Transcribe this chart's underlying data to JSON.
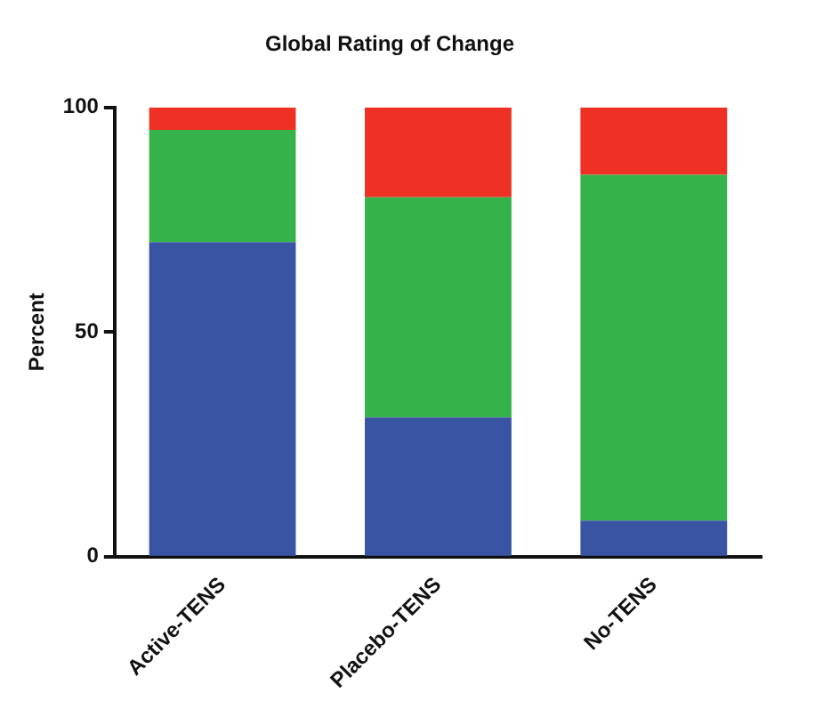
{
  "chart_data": {
    "type": "bar",
    "title": "Global Rating of Change",
    "ylabel": "Percent",
    "categories": [
      "Active-TENS",
      "Placebo-TENS",
      "No-TENS"
    ],
    "stacked": true,
    "ylim": [
      0,
      100
    ],
    "yticks": [
      0,
      50,
      100
    ],
    "grid": false,
    "legend": false,
    "series": [
      {
        "color": "#3a54a4",
        "values": [
          70,
          31,
          8
        ]
      },
      {
        "color": "#36b24a",
        "values": [
          25,
          49,
          77
        ]
      },
      {
        "color": "#ee3124",
        "values": [
          5,
          20,
          15
        ]
      }
    ]
  }
}
